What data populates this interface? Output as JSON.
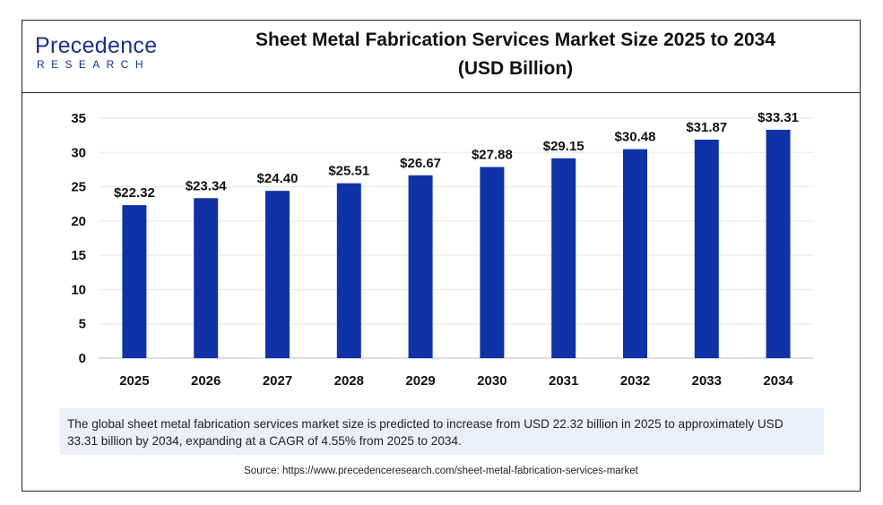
{
  "brand": {
    "logo_top": "Precedence",
    "logo_bottom": "RESEARCH"
  },
  "title_line1": "Sheet Metal Fabrication Services Market Size 2025 to 2034",
  "title_line2": "(USD Billion)",
  "chart_data": {
    "type": "bar",
    "title": "Sheet Metal Fabrication Services Market Size 2025 to 2034 (USD Billion)",
    "xlabel": "",
    "ylabel": "",
    "categories": [
      "2025",
      "2026",
      "2027",
      "2028",
      "2029",
      "2030",
      "2031",
      "2032",
      "2033",
      "2034"
    ],
    "values": [
      22.32,
      23.34,
      24.4,
      25.51,
      26.67,
      27.88,
      29.15,
      30.48,
      31.87,
      33.31
    ],
    "value_labels": [
      "$22.32",
      "$23.34",
      "$24.40",
      "$25.51",
      "$26.67",
      "$27.88",
      "$29.15",
      "$30.48",
      "$31.87",
      "$33.31"
    ],
    "yticks": [
      "0",
      "5",
      "10",
      "15",
      "20",
      "25",
      "30",
      "35"
    ],
    "ylim": [
      0,
      35
    ],
    "grid": true,
    "legend": "none",
    "bar_color": "#0f33a6"
  },
  "note": "The global sheet metal fabrication services market size is predicted to increase from USD 22.32 billion in 2025 to approximately USD 33.31 billion by 2034, expanding at a CAGR of 4.55% from 2025 to 2034.",
  "source": "Source: https://www.precedenceresearch.com/sheet-metal-fabrication-services-market",
  "colors": {
    "bar": "#0f33a6",
    "logo": "#1c2f8c",
    "note_bg": "#eaf0f9"
  }
}
